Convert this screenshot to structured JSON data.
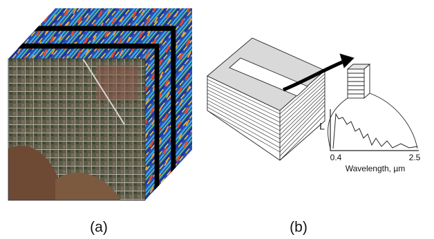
{
  "panels": [
    {
      "label": "(a)"
    },
    {
      "label": "(b)",
      "axis_label": "L",
      "x_start": 0.4,
      "x_end": 2.5,
      "x_label": "Wavelength, µm"
    }
  ]
}
